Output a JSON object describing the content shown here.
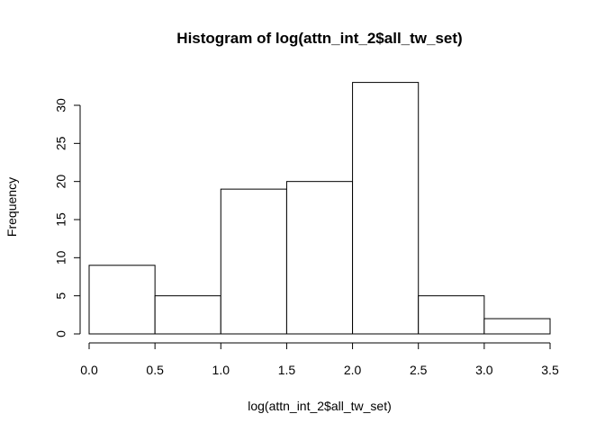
{
  "chart_data": {
    "type": "bar",
    "title": "Histogram of log(attn_int_2$all_tw_set)",
    "xlabel": "log(attn_int_2$all_tw_set)",
    "ylabel": "Frequency",
    "bins": [
      {
        "x0": 0.0,
        "x1": 0.5,
        "count": 9
      },
      {
        "x0": 0.5,
        "x1": 1.0,
        "count": 5
      },
      {
        "x0": 1.0,
        "x1": 1.5,
        "count": 19
      },
      {
        "x0": 1.5,
        "x1": 2.0,
        "count": 20
      },
      {
        "x0": 2.0,
        "x1": 2.5,
        "count": 33
      },
      {
        "x0": 2.5,
        "x1": 3.0,
        "count": 5
      },
      {
        "x0": 3.0,
        "x1": 3.5,
        "count": 2
      }
    ],
    "x_ticks": [
      "0.0",
      "0.5",
      "1.0",
      "1.5",
      "2.0",
      "2.5",
      "3.0",
      "3.5"
    ],
    "y_ticks": [
      "0",
      "5",
      "10",
      "15",
      "20",
      "25",
      "30"
    ],
    "xlim": [
      0,
      3.5
    ],
    "ylim": [
      0,
      35
    ],
    "grid": false,
    "bar_fill": "#ffffff",
    "bar_stroke": "#000000"
  }
}
